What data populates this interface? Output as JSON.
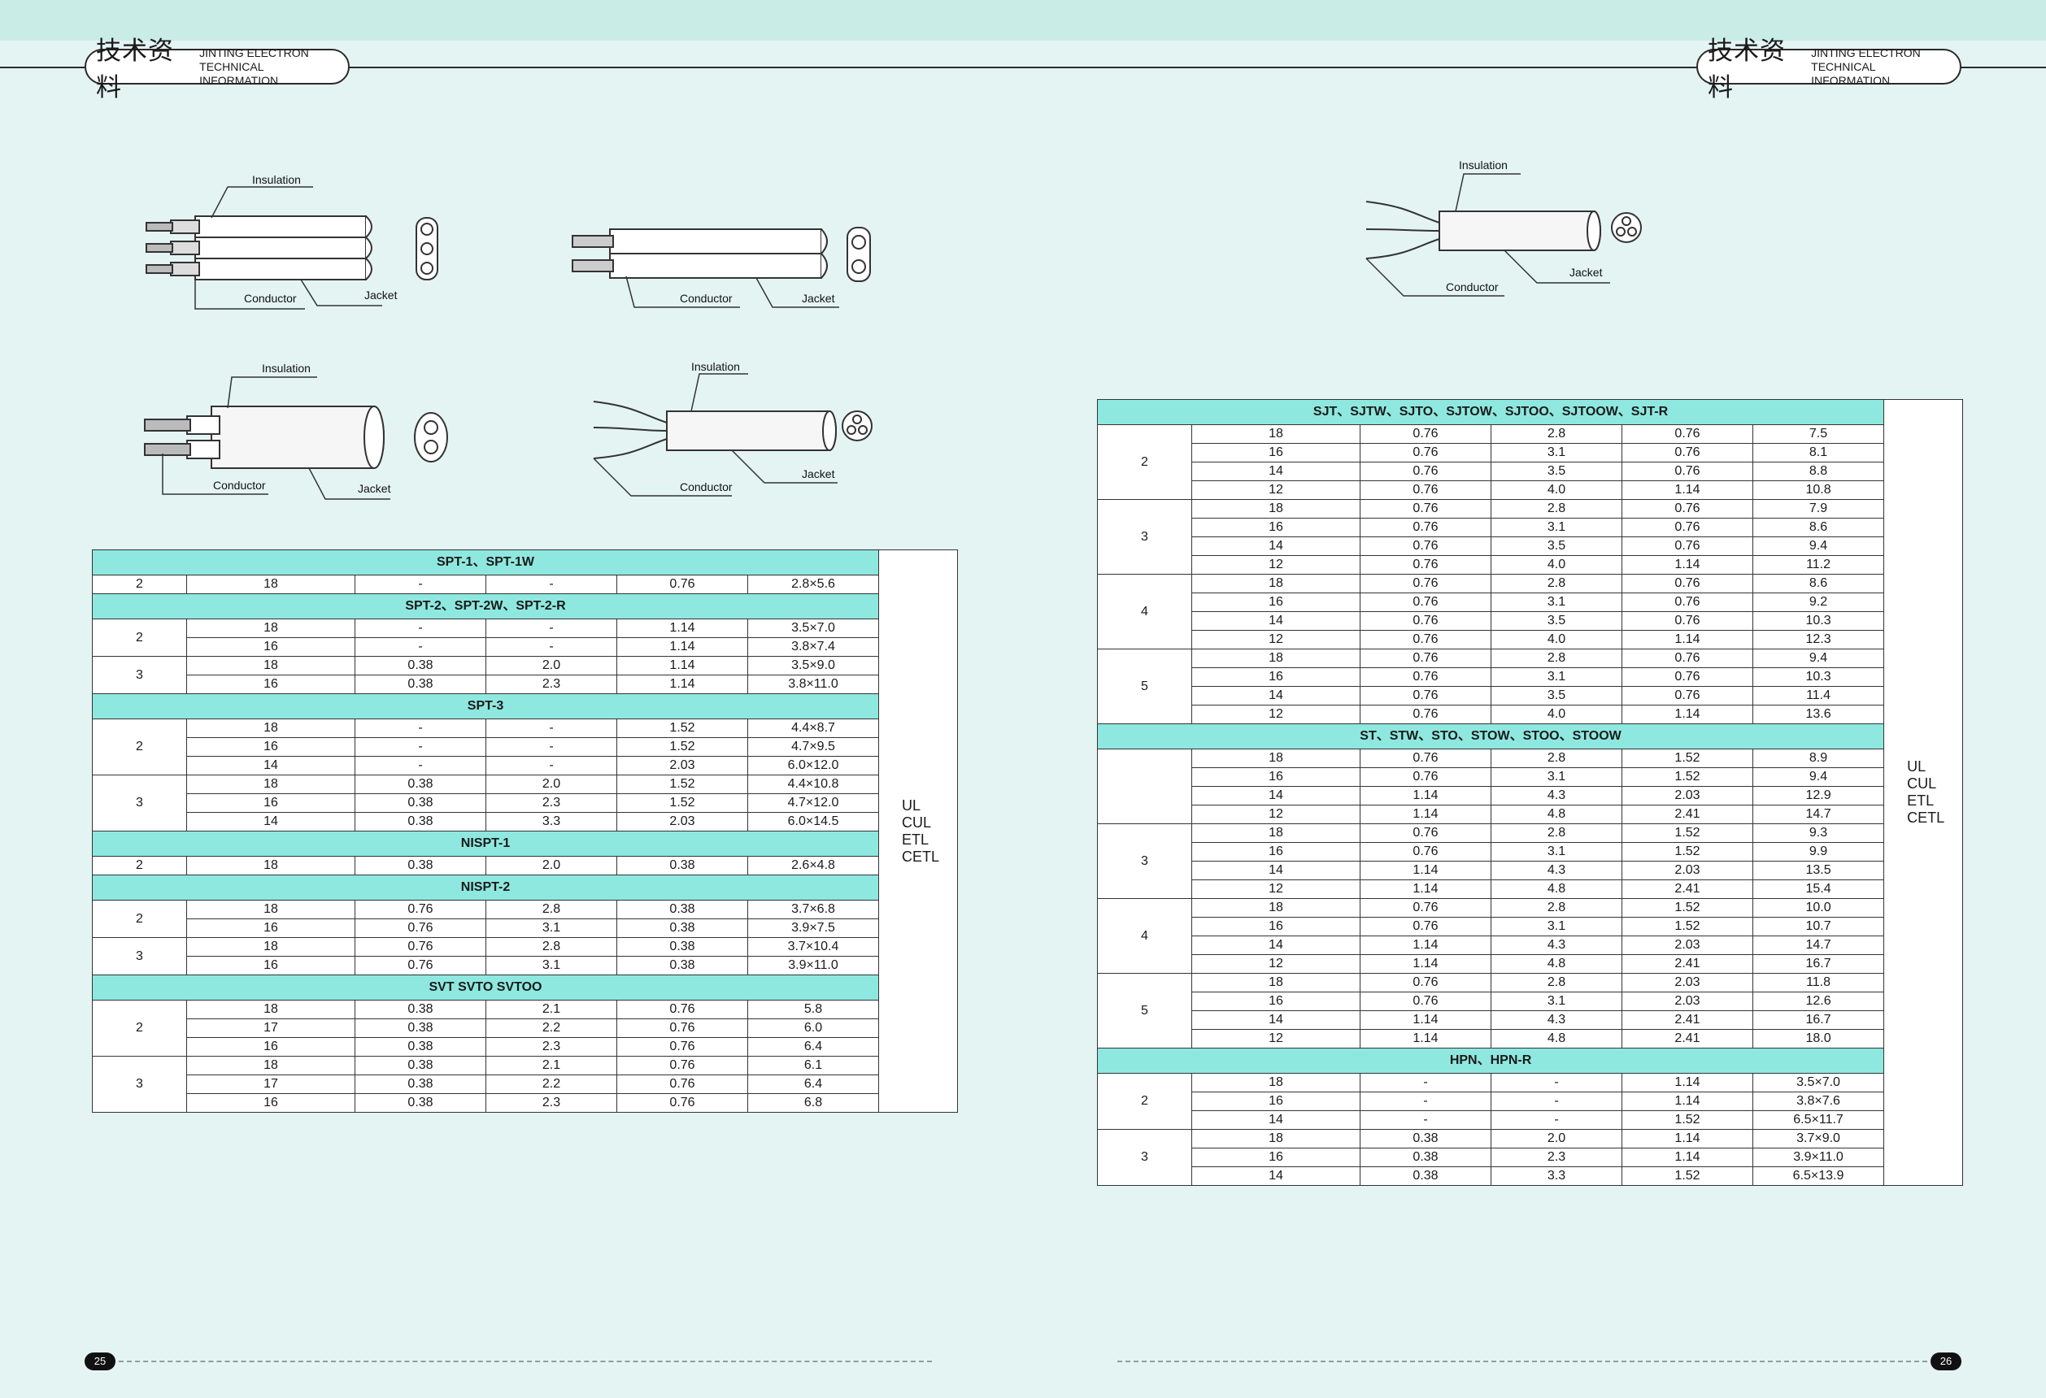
{
  "header": {
    "title_zh": "技术资料",
    "title_en_line1": "JINTING ELECTRON",
    "title_en_line2": "TECHNICAL INFORMATION"
  },
  "figure_labels": {
    "insulation": "Insulation",
    "conductor": "Conductor",
    "jacket": "Jacket"
  },
  "certifications": [
    "UL",
    "CUL",
    "ETL",
    "CETL"
  ],
  "left_table": {
    "sections": [
      {
        "title": "SPT-1、SPT-1W",
        "groups": [
          {
            "cond": "2",
            "rows": [
              [
                "18",
                "-",
                "-",
                "0.76",
                "2.8×5.6"
              ]
            ]
          }
        ]
      },
      {
        "title": "SPT-2、SPT-2W、SPT-2-R",
        "groups": [
          {
            "cond": "2",
            "rows": [
              [
                "18",
                "-",
                "-",
                "1.14",
                "3.5×7.0"
              ],
              [
                "16",
                "-",
                "-",
                "1.14",
                "3.8×7.4"
              ]
            ]
          },
          {
            "cond": "3",
            "rows": [
              [
                "18",
                "0.38",
                "2.0",
                "1.14",
                "3.5×9.0"
              ],
              [
                "16",
                "0.38",
                "2.3",
                "1.14",
                "3.8×11.0"
              ]
            ]
          }
        ]
      },
      {
        "title": "SPT-3",
        "groups": [
          {
            "cond": "2",
            "rows": [
              [
                "18",
                "-",
                "-",
                "1.52",
                "4.4×8.7"
              ],
              [
                "16",
                "-",
                "-",
                "1.52",
                "4.7×9.5"
              ],
              [
                "14",
                "-",
                "-",
                "2.03",
                "6.0×12.0"
              ]
            ]
          },
          {
            "cond": "3",
            "rows": [
              [
                "18",
                "0.38",
                "2.0",
                "1.52",
                "4.4×10.8"
              ],
              [
                "16",
                "0.38",
                "2.3",
                "1.52",
                "4.7×12.0"
              ],
              [
                "14",
                "0.38",
                "3.3",
                "2.03",
                "6.0×14.5"
              ]
            ]
          }
        ]
      },
      {
        "title": "NISPT-1",
        "groups": [
          {
            "cond": "2",
            "rows": [
              [
                "18",
                "0.38",
                "2.0",
                "0.38",
                "2.6×4.8"
              ]
            ]
          }
        ]
      },
      {
        "title": "NISPT-2",
        "groups": [
          {
            "cond": "2",
            "rows": [
              [
                "18",
                "0.76",
                "2.8",
                "0.38",
                "3.7×6.8"
              ],
              [
                "16",
                "0.76",
                "3.1",
                "0.38",
                "3.9×7.5"
              ]
            ]
          },
          {
            "cond": "3",
            "rows": [
              [
                "18",
                "0.76",
                "2.8",
                "0.38",
                "3.7×10.4"
              ],
              [
                "16",
                "0.76",
                "3.1",
                "0.38",
                "3.9×11.0"
              ]
            ]
          }
        ]
      },
      {
        "title": "SVT  SVTO  SVTOO",
        "groups": [
          {
            "cond": "2",
            "rows": [
              [
                "18",
                "0.38",
                "2.1",
                "0.76",
                "5.8"
              ],
              [
                "17",
                "0.38",
                "2.2",
                "0.76",
                "6.0"
              ],
              [
                "16",
                "0.38",
                "2.3",
                "0.76",
                "6.4"
              ]
            ]
          },
          {
            "cond": "3",
            "rows": [
              [
                "18",
                "0.38",
                "2.1",
                "0.76",
                "6.1"
              ],
              [
                "17",
                "0.38",
                "2.2",
                "0.76",
                "6.4"
              ],
              [
                "16",
                "0.38",
                "2.3",
                "0.76",
                "6.8"
              ]
            ]
          }
        ]
      }
    ]
  },
  "right_table": {
    "sections": [
      {
        "title": "SJT、SJTW、SJTO、SJTOW、SJTOO、SJTOOW、SJT-R",
        "groups": [
          {
            "cond": "2",
            "rows": [
              [
                "18",
                "0.76",
                "2.8",
                "0.76",
                "7.5"
              ],
              [
                "16",
                "0.76",
                "3.1",
                "0.76",
                "8.1"
              ],
              [
                "14",
                "0.76",
                "3.5",
                "0.76",
                "8.8"
              ],
              [
                "12",
                "0.76",
                "4.0",
                "1.14",
                "10.8"
              ]
            ]
          },
          {
            "cond": "3",
            "rows": [
              [
                "18",
                "0.76",
                "2.8",
                "0.76",
                "7.9"
              ],
              [
                "16",
                "0.76",
                "3.1",
                "0.76",
                "8.6"
              ],
              [
                "14",
                "0.76",
                "3.5",
                "0.76",
                "9.4"
              ],
              [
                "12",
                "0.76",
                "4.0",
                "1.14",
                "11.2"
              ]
            ]
          },
          {
            "cond": "4",
            "rows": [
              [
                "18",
                "0.76",
                "2.8",
                "0.76",
                "8.6"
              ],
              [
                "16",
                "0.76",
                "3.1",
                "0.76",
                "9.2"
              ],
              [
                "14",
                "0.76",
                "3.5",
                "0.76",
                "10.3"
              ],
              [
                "12",
                "0.76",
                "4.0",
                "1.14",
                "12.3"
              ]
            ]
          },
          {
            "cond": "5",
            "rows": [
              [
                "18",
                "0.76",
                "2.8",
                "0.76",
                "9.4"
              ],
              [
                "16",
                "0.76",
                "3.1",
                "0.76",
                "10.3"
              ],
              [
                "14",
                "0.76",
                "3.5",
                "0.76",
                "11.4"
              ],
              [
                "12",
                "0.76",
                "4.0",
                "1.14",
                "13.6"
              ]
            ]
          }
        ]
      },
      {
        "title": "ST、STW、STO、STOW、STOO、STOOW",
        "groups": [
          {
            "cond": "",
            "rows": [
              [
                "18",
                "0.76",
                "2.8",
                "1.52",
                "8.9"
              ],
              [
                "16",
                "0.76",
                "3.1",
                "1.52",
                "9.4"
              ],
              [
                "14",
                "1.14",
                "4.3",
                "2.03",
                "12.9"
              ],
              [
                "12",
                "1.14",
                "4.8",
                "2.41",
                "14.7"
              ]
            ]
          },
          {
            "cond": "3",
            "rows": [
              [
                "18",
                "0.76",
                "2.8",
                "1.52",
                "9.3"
              ],
              [
                "16",
                "0.76",
                "3.1",
                "1.52",
                "9.9"
              ],
              [
                "14",
                "1.14",
                "4.3",
                "2.03",
                "13.5"
              ],
              [
                "12",
                "1.14",
                "4.8",
                "2.41",
                "15.4"
              ]
            ]
          },
          {
            "cond": "4",
            "rows": [
              [
                "18",
                "0.76",
                "2.8",
                "1.52",
                "10.0"
              ],
              [
                "16",
                "0.76",
                "3.1",
                "1.52",
                "10.7"
              ],
              [
                "14",
                "1.14",
                "4.3",
                "2.03",
                "14.7"
              ],
              [
                "12",
                "1.14",
                "4.8",
                "2.41",
                "16.7"
              ]
            ]
          },
          {
            "cond": "5",
            "rows": [
              [
                "18",
                "0.76",
                "2.8",
                "2.03",
                "11.8"
              ],
              [
                "16",
                "0.76",
                "3.1",
                "2.03",
                "12.6"
              ],
              [
                "14",
                "1.14",
                "4.3",
                "2.41",
                "16.7"
              ],
              [
                "12",
                "1.14",
                "4.8",
                "2.41",
                "18.0"
              ]
            ]
          }
        ]
      },
      {
        "title": "HPN、HPN-R",
        "groups": [
          {
            "cond": "2",
            "rows": [
              [
                "18",
                "-",
                "-",
                "1.14",
                "3.5×7.0"
              ],
              [
                "16",
                "-",
                "-",
                "1.14",
                "3.8×7.6"
              ],
              [
                "14",
                "-",
                "-",
                "1.52",
                "6.5×11.7"
              ]
            ]
          },
          {
            "cond": "3",
            "rows": [
              [
                "18",
                "0.38",
                "2.0",
                "1.14",
                "3.7×9.0"
              ],
              [
                "16",
                "0.38",
                "2.3",
                "1.14",
                "3.9×11.0"
              ],
              [
                "14",
                "0.38",
                "3.3",
                "1.52",
                "6.5×13.9"
              ]
            ]
          }
        ]
      }
    ]
  },
  "footer": {
    "page_left": "25",
    "page_right": "26"
  }
}
